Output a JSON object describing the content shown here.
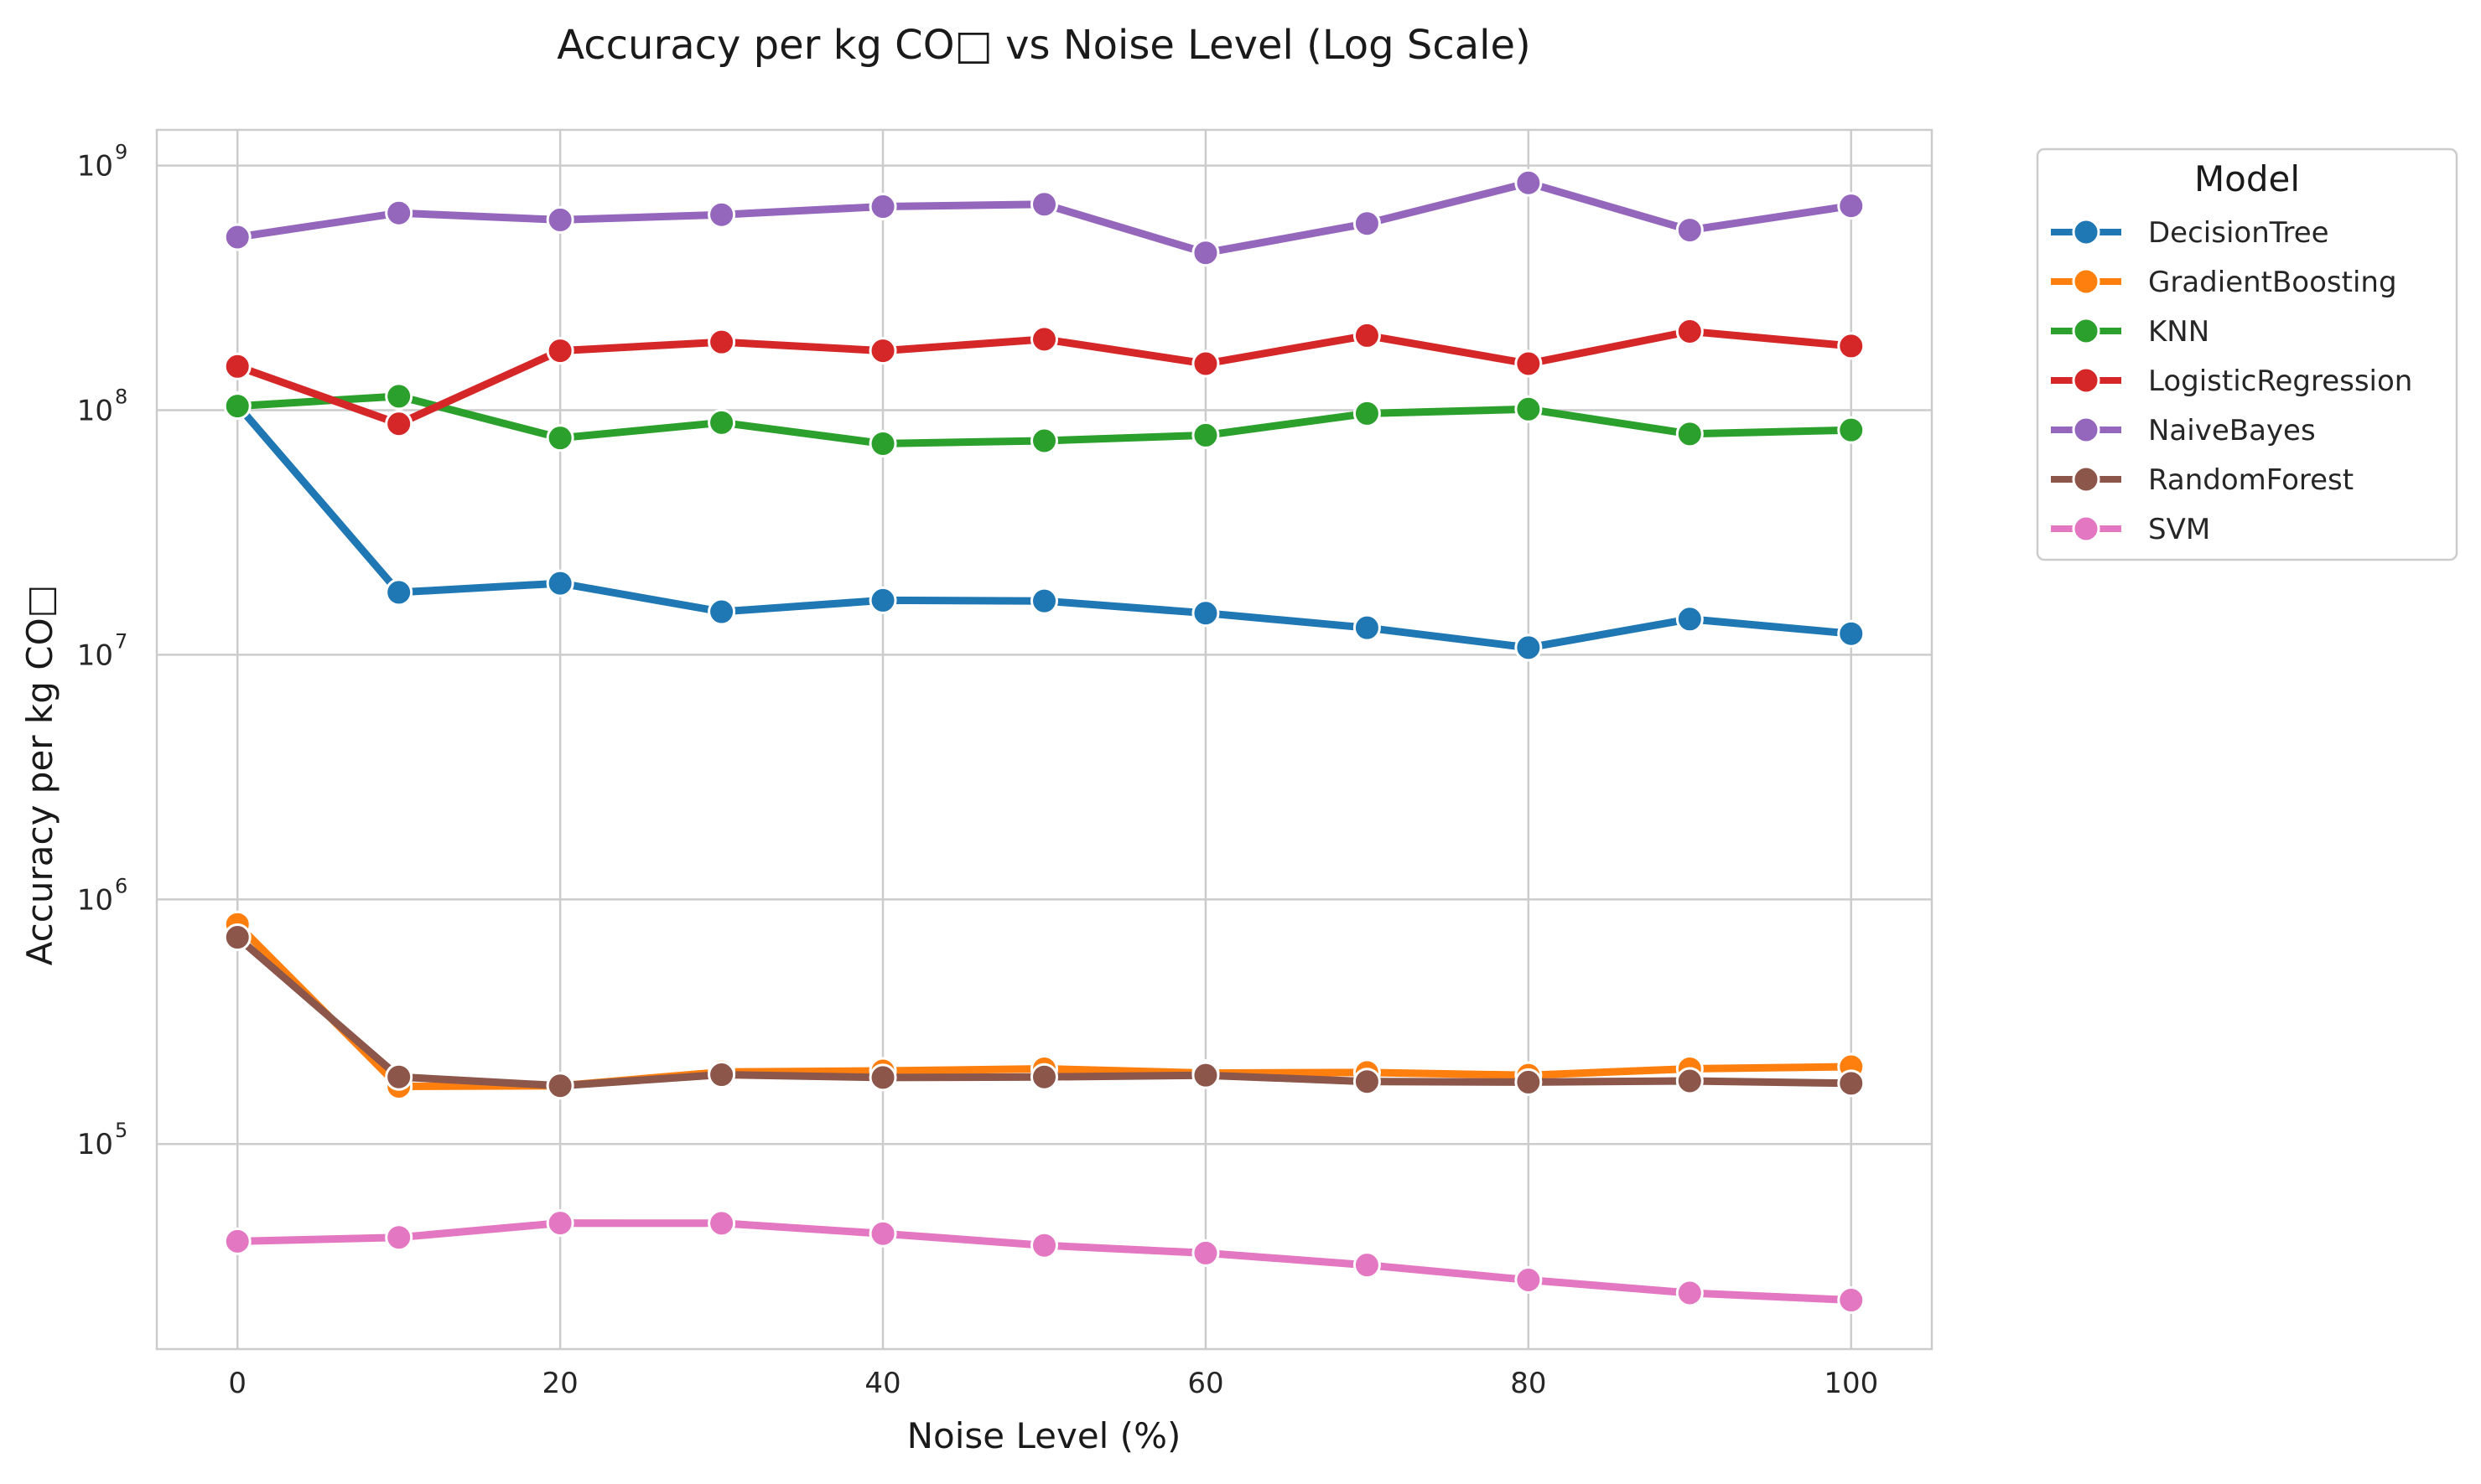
{
  "chart_data": {
    "type": "line",
    "title": "Accuracy per kg CO□ vs Noise Level (Log Scale)",
    "xlabel": "Noise Level (%)",
    "ylabel": "Accuracy per kg CO□",
    "yscale": "log",
    "xlim": [
      -5,
      105
    ],
    "ylim": [
      14500,
      1400000000
    ],
    "grid": true,
    "legend_title": "Model",
    "legend_position": "outside-right-top",
    "x_ticks": [
      0,
      20,
      40,
      60,
      80,
      100
    ],
    "y_ticks": [
      {
        "value": 100000,
        "base": "10",
        "exp": "5"
      },
      {
        "value": 1000000,
        "base": "10",
        "exp": "6"
      },
      {
        "value": 10000000,
        "base": "10",
        "exp": "7"
      },
      {
        "value": 100000000,
        "base": "10",
        "exp": "8"
      },
      {
        "value": 1000000000,
        "base": "10",
        "exp": "9"
      }
    ],
    "x": [
      0,
      10,
      20,
      30,
      40,
      50,
      60,
      70,
      80,
      90,
      100
    ],
    "series": [
      {
        "name": "DecisionTree",
        "color": "#1f77b4",
        "values": [
          105000000,
          18000000,
          19600000,
          15000000,
          16700000,
          16600000,
          14800000,
          12900000,
          10700000,
          14000000,
          12200000
        ]
      },
      {
        "name": "GradientBoosting",
        "color": "#ff7f0e",
        "values": [
          790000,
          172000,
          173000,
          197000,
          199000,
          203000,
          195000,
          196000,
          191000,
          203000,
          207000
        ]
      },
      {
        "name": "KNN",
        "color": "#2ca02c",
        "values": [
          104000000,
          114000000,
          77000000,
          89000000,
          73000000,
          75000000,
          79000000,
          97000000,
          101000000,
          80000000,
          83000000
        ]
      },
      {
        "name": "LogisticRegression",
        "color": "#d62728",
        "values": [
          151000000,
          88000000,
          175000000,
          190000000,
          175000000,
          195000000,
          155000000,
          202000000,
          155000000,
          210000000,
          183000000
        ]
      },
      {
        "name": "NaiveBayes",
        "color": "#9467bd",
        "values": [
          510000000,
          640000000,
          600000000,
          630000000,
          680000000,
          695000000,
          440000000,
          580000000,
          850000000,
          545000000,
          685000000
        ]
      },
      {
        "name": "RandomForest",
        "color": "#8c564b",
        "values": [
          700000,
          188000,
          173000,
          192000,
          187000,
          188000,
          191000,
          180000,
          179000,
          181000,
          177000
        ]
      },
      {
        "name": "SVM",
        "color": "#e377c2",
        "values": [
          40000,
          41500,
          47500,
          47400,
          43000,
          38500,
          35800,
          32000,
          27800,
          24600,
          23000
        ]
      }
    ]
  }
}
